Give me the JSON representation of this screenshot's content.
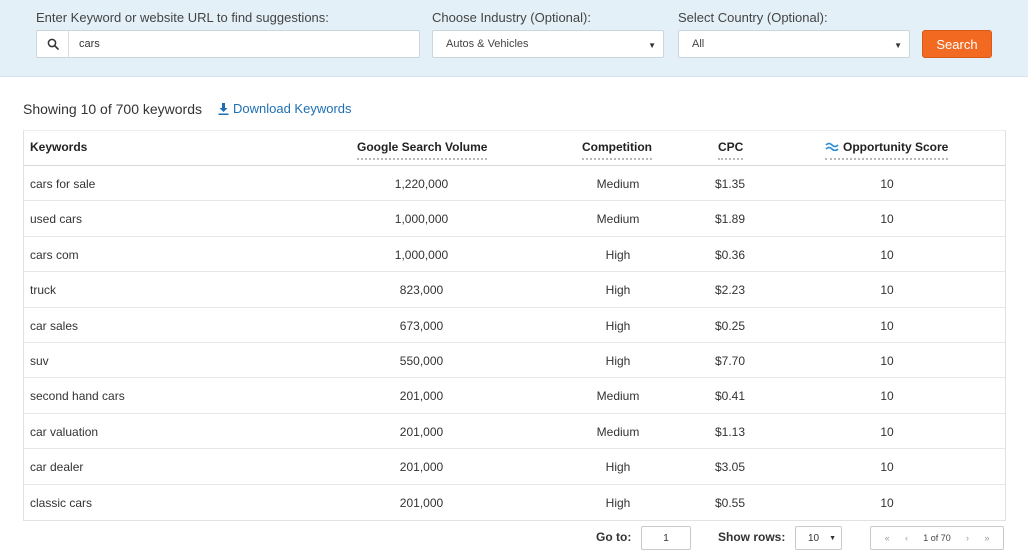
{
  "search": {
    "keyword_label": "Enter Keyword or website URL to find suggestions:",
    "keyword_value": "cars",
    "industry_label": "Choose Industry (Optional):",
    "industry_value": "Autos & Vehicles",
    "country_label": "Select Country (Optional):",
    "country_value": "All",
    "button_label": "Search",
    "accent_color": "#f26a21"
  },
  "summary": {
    "text": "Showing 10 of 700 keywords",
    "download_label": "Download Keywords"
  },
  "table": {
    "headers": {
      "keywords": "Keywords",
      "volume": "Google Search Volume",
      "competition": "Competition",
      "cpc": "CPC",
      "opportunity": "Opportunity Score"
    },
    "rows": [
      {
        "keyword": "cars for sale",
        "volume": "1,220,000",
        "competition": "Medium",
        "cpc": "$1.35",
        "score": "10"
      },
      {
        "keyword": "used cars",
        "volume": "1,000,000",
        "competition": "Medium",
        "cpc": "$1.89",
        "score": "10"
      },
      {
        "keyword": "cars com",
        "volume": "1,000,000",
        "competition": "High",
        "cpc": "$0.36",
        "score": "10"
      },
      {
        "keyword": "truck",
        "volume": "823,000",
        "competition": "High",
        "cpc": "$2.23",
        "score": "10"
      },
      {
        "keyword": "car sales",
        "volume": "673,000",
        "competition": "High",
        "cpc": "$0.25",
        "score": "10"
      },
      {
        "keyword": "suv",
        "volume": "550,000",
        "competition": "High",
        "cpc": "$7.70",
        "score": "10"
      },
      {
        "keyword": "second hand cars",
        "volume": "201,000",
        "competition": "Medium",
        "cpc": "$0.41",
        "score": "10"
      },
      {
        "keyword": "car valuation",
        "volume": "201,000",
        "competition": "Medium",
        "cpc": "$1.13",
        "score": "10"
      },
      {
        "keyword": "car dealer",
        "volume": "201,000",
        "competition": "High",
        "cpc": "$3.05",
        "score": "10"
      },
      {
        "keyword": "classic cars",
        "volume": "201,000",
        "competition": "High",
        "cpc": "$0.55",
        "score": "10"
      }
    ]
  },
  "pagination": {
    "goto_label": "Go to:",
    "goto_value": "1",
    "rows_label": "Show rows:",
    "rows_value": "10",
    "page_text": "1 of 70",
    "first": "«",
    "prev": "‹",
    "next": "›",
    "last": "»"
  }
}
